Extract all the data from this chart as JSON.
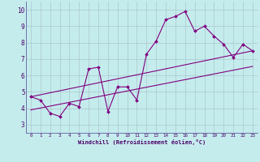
{
  "xlabel": "Windchill (Refroidissement éolien,°C)",
  "background_color": "#c5eced",
  "grid_color": "#aac8cc",
  "line_color": "#800080",
  "xlim": [
    -0.5,
    23.5
  ],
  "ylim": [
    2.5,
    10.5
  ],
  "yticks": [
    3,
    4,
    5,
    6,
    7,
    8,
    9,
    10
  ],
  "xticks": [
    0,
    1,
    2,
    3,
    4,
    5,
    6,
    7,
    8,
    9,
    10,
    11,
    12,
    13,
    14,
    15,
    16,
    17,
    18,
    19,
    20,
    21,
    22,
    23
  ],
  "line1_x": [
    0,
    1,
    2,
    3,
    4,
    5,
    6,
    7,
    8,
    9,
    10,
    11,
    12,
    13,
    14,
    15,
    16,
    17,
    18,
    19,
    20,
    21,
    22,
    23
  ],
  "line1_y": [
    4.7,
    4.5,
    3.7,
    3.5,
    4.3,
    4.1,
    6.4,
    6.5,
    3.8,
    5.3,
    5.3,
    4.5,
    7.3,
    8.1,
    9.4,
    9.6,
    9.9,
    8.7,
    9.0,
    8.4,
    7.9,
    7.1,
    7.9,
    7.5
  ],
  "line2_x": [
    0,
    23
  ],
  "line2_y": [
    4.7,
    7.5
  ],
  "line3_x": [
    0,
    23
  ],
  "line3_y": [
    3.9,
    6.55
  ]
}
